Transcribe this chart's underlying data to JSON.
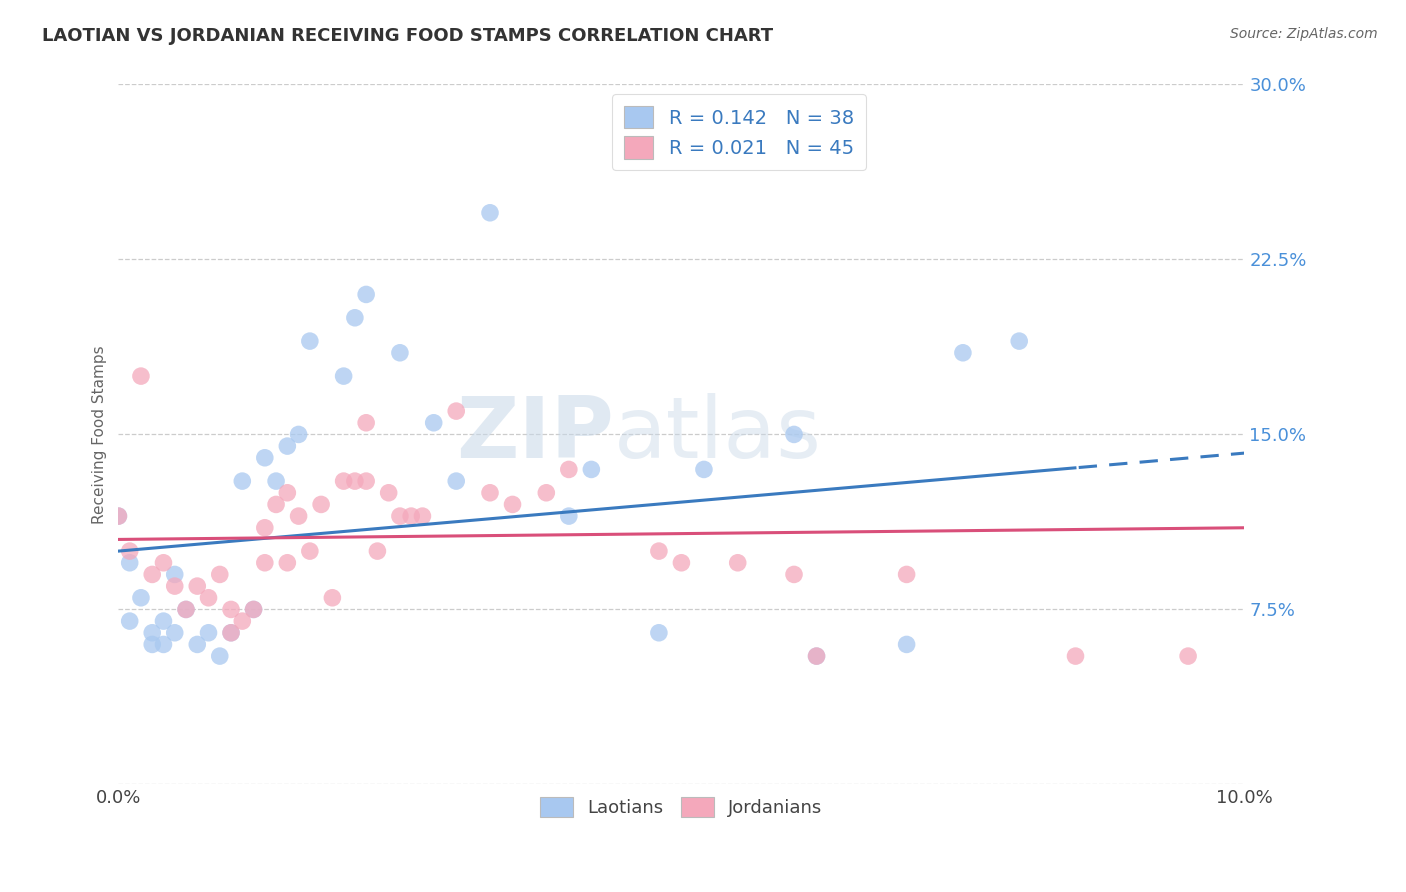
{
  "title": "LAOTIAN VS JORDANIAN RECEIVING FOOD STAMPS CORRELATION CHART",
  "source": "Source: ZipAtlas.com",
  "ylabel": "Receiving Food Stamps",
  "x_min": 0.0,
  "x_max": 0.1,
  "y_min": 0.0,
  "y_max": 0.3,
  "x_ticks": [
    0.0,
    0.02,
    0.04,
    0.06,
    0.08,
    0.1
  ],
  "x_ticklabels": [
    "0.0%",
    "",
    "",
    "",
    "",
    "10.0%"
  ],
  "y_ticks": [
    0.0,
    0.075,
    0.15,
    0.225,
    0.3
  ],
  "y_ticklabels": [
    "",
    "7.5%",
    "15.0%",
    "22.5%",
    "30.0%"
  ],
  "laotian_R": 0.142,
  "laotian_N": 38,
  "jordanian_R": 0.021,
  "jordanian_N": 45,
  "laotian_color": "#a8c8f0",
  "jordanian_color": "#f4a8bb",
  "laotian_line_color": "#3a7abf",
  "jordanian_line_color": "#d94f7a",
  "tick_color": "#4a90d9",
  "laotian_scatter_x": [
    0.0,
    0.001,
    0.001,
    0.002,
    0.003,
    0.003,
    0.004,
    0.004,
    0.005,
    0.005,
    0.006,
    0.007,
    0.008,
    0.009,
    0.01,
    0.011,
    0.012,
    0.013,
    0.014,
    0.015,
    0.016,
    0.017,
    0.02,
    0.021,
    0.022,
    0.025,
    0.028,
    0.03,
    0.033,
    0.04,
    0.042,
    0.048,
    0.052,
    0.06,
    0.062,
    0.07,
    0.075,
    0.08
  ],
  "laotian_scatter_y": [
    0.115,
    0.095,
    0.07,
    0.08,
    0.065,
    0.06,
    0.07,
    0.06,
    0.065,
    0.09,
    0.075,
    0.06,
    0.065,
    0.055,
    0.065,
    0.13,
    0.075,
    0.14,
    0.13,
    0.145,
    0.15,
    0.19,
    0.175,
    0.2,
    0.21,
    0.185,
    0.155,
    0.13,
    0.245,
    0.115,
    0.135,
    0.065,
    0.135,
    0.15,
    0.055,
    0.06,
    0.185,
    0.19
  ],
  "jordanian_scatter_x": [
    0.0,
    0.001,
    0.002,
    0.003,
    0.004,
    0.005,
    0.006,
    0.007,
    0.008,
    0.009,
    0.01,
    0.01,
    0.011,
    0.012,
    0.013,
    0.013,
    0.014,
    0.015,
    0.015,
    0.016,
    0.017,
    0.018,
    0.019,
    0.02,
    0.021,
    0.022,
    0.022,
    0.023,
    0.024,
    0.025,
    0.026,
    0.027,
    0.03,
    0.033,
    0.035,
    0.038,
    0.04,
    0.048,
    0.05,
    0.055,
    0.06,
    0.062,
    0.07,
    0.085,
    0.095
  ],
  "jordanian_scatter_y": [
    0.115,
    0.1,
    0.175,
    0.09,
    0.095,
    0.085,
    0.075,
    0.085,
    0.08,
    0.09,
    0.075,
    0.065,
    0.07,
    0.075,
    0.095,
    0.11,
    0.12,
    0.095,
    0.125,
    0.115,
    0.1,
    0.12,
    0.08,
    0.13,
    0.13,
    0.13,
    0.155,
    0.1,
    0.125,
    0.115,
    0.115,
    0.115,
    0.16,
    0.125,
    0.12,
    0.125,
    0.135,
    0.1,
    0.095,
    0.095,
    0.09,
    0.055,
    0.09,
    0.055,
    0.055
  ],
  "watermark_zip": "ZIP",
  "watermark_atlas": "atlas",
  "background_color": "#ffffff",
  "grid_color": "#cccccc",
  "legend_R_color": "#3a7abf",
  "legend_N_color": "#e05050"
}
